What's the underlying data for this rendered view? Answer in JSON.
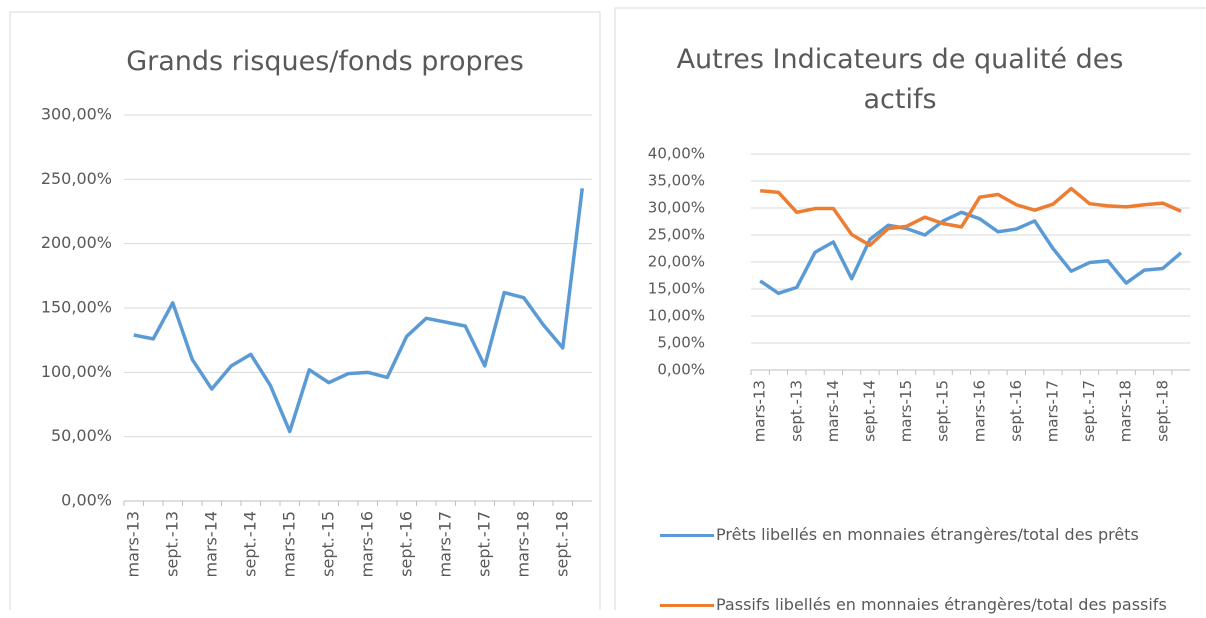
{
  "chart_data": [
    {
      "type": "line",
      "title": "Grands risques/fonds propres",
      "categories": [
        "mars-13",
        null,
        "sept.-13",
        null,
        "mars-14",
        null,
        "sept.-14",
        null,
        "mars-15",
        null,
        "sept.-15",
        null,
        "mars-16",
        null,
        "sept.-16",
        null,
        "mars-17",
        null,
        "sept.-17",
        null,
        "mars-18",
        null,
        "sept.-18",
        null
      ],
      "series": [
        {
          "name": "Grands risques/fonds propres",
          "color": "#5b9bd5",
          "values": [
            129,
            126,
            154,
            110,
            87,
            105,
            114,
            90,
            54,
            102,
            92,
            99,
            100,
            96,
            128,
            142,
            139,
            136,
            105,
            162,
            158,
            137,
            119,
            243
          ]
        }
      ],
      "ylim": [
        0,
        300
      ],
      "yticks": [
        {
          "value": 0,
          "label": "0,00%"
        },
        {
          "value": 50,
          "label": "50,00%"
        },
        {
          "value": 100,
          "label": "100,00%"
        },
        {
          "value": 150,
          "label": "150,00%"
        },
        {
          "value": 200,
          "label": "200,00%"
        },
        {
          "value": 250,
          "label": "250,00%"
        },
        {
          "value": 300,
          "label": "300,00%"
        }
      ],
      "grid": true,
      "legend": false
    },
    {
      "type": "line",
      "title": "Autres Indicateurs de qualité des actifs",
      "categories": [
        "mars-13",
        null,
        "sept.-13",
        null,
        "mars-14",
        null,
        "sept.-14",
        null,
        "mars-15",
        null,
        "sept.-15",
        null,
        "mars-16",
        null,
        "sept.-16",
        null,
        "mars-17",
        null,
        "sept.-17",
        null,
        "mars-18",
        null,
        "sept.-18",
        null
      ],
      "series": [
        {
          "name": "Prêts libellés en monnaies étrangères/total des prêts",
          "color": "#5b9bd5",
          "values": [
            16.5,
            14.2,
            15.3,
            21.8,
            23.7,
            16.9,
            24.2,
            26.8,
            26.2,
            25.0,
            27.6,
            29.2,
            28.0,
            25.6,
            26.1,
            27.6,
            22.5,
            18.3,
            19.9,
            20.2,
            16.1,
            18.5,
            18.8,
            21.7
          ]
        },
        {
          "name": "Passifs libellés en monnaies étrangères/total des passifs",
          "color": "#ed7d31",
          "values": [
            33.2,
            32.9,
            29.2,
            29.9,
            29.9,
            25.1,
            23.1,
            26.2,
            26.6,
            28.3,
            27.1,
            26.5,
            32.0,
            32.5,
            30.6,
            29.6,
            30.7,
            33.6,
            30.8,
            30.4,
            30.2,
            30.6,
            30.9,
            29.4
          ]
        }
      ],
      "ylim": [
        0,
        40
      ],
      "yticks": [
        {
          "value": 0,
          "label": "0,00%"
        },
        {
          "value": 5,
          "label": "5,00%"
        },
        {
          "value": 10,
          "label": "10,00%"
        },
        {
          "value": 15,
          "label": "15,00%"
        },
        {
          "value": 20,
          "label": "20,00%"
        },
        {
          "value": 25,
          "label": "25,00%"
        },
        {
          "value": 30,
          "label": "30,00%"
        },
        {
          "value": 35,
          "label": "35,00%"
        },
        {
          "value": 40,
          "label": "40,00%"
        }
      ],
      "grid": true,
      "legend": "bottom"
    }
  ]
}
